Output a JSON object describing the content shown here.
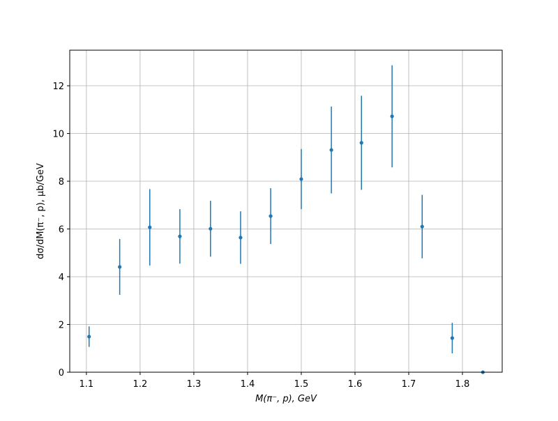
{
  "chart_data": {
    "type": "errorbar",
    "x_label": "M(π⁻, p), GeV",
    "y_label": "dσ/dM(π⁻, p), μb/GeV",
    "xlim": [
      1.069,
      1.874
    ],
    "ylim": [
      0,
      13.49
    ],
    "xticks": [
      1.1,
      1.2,
      1.3,
      1.4,
      1.5,
      1.6,
      1.7,
      1.8
    ],
    "yticks": [
      0,
      2,
      4,
      6,
      8,
      10,
      12
    ],
    "grid": true,
    "series": [
      {
        "color": "#1f77b4",
        "x": [
          1.105,
          1.162,
          1.218,
          1.274,
          1.331,
          1.387,
          1.443,
          1.5,
          1.556,
          1.612,
          1.669,
          1.725,
          1.781,
          1.838
        ],
        "values": [
          1.49,
          4.41,
          6.07,
          5.69,
          6.01,
          5.64,
          6.54,
          8.09,
          9.31,
          9.61,
          10.72,
          6.1,
          1.43,
          0
        ],
        "errors": [
          0.43,
          1.17,
          1.6,
          1.14,
          1.17,
          1.1,
          1.17,
          1.26,
          1.82,
          1.97,
          2.14,
          1.33,
          0.64,
          0
        ]
      }
    ]
  }
}
